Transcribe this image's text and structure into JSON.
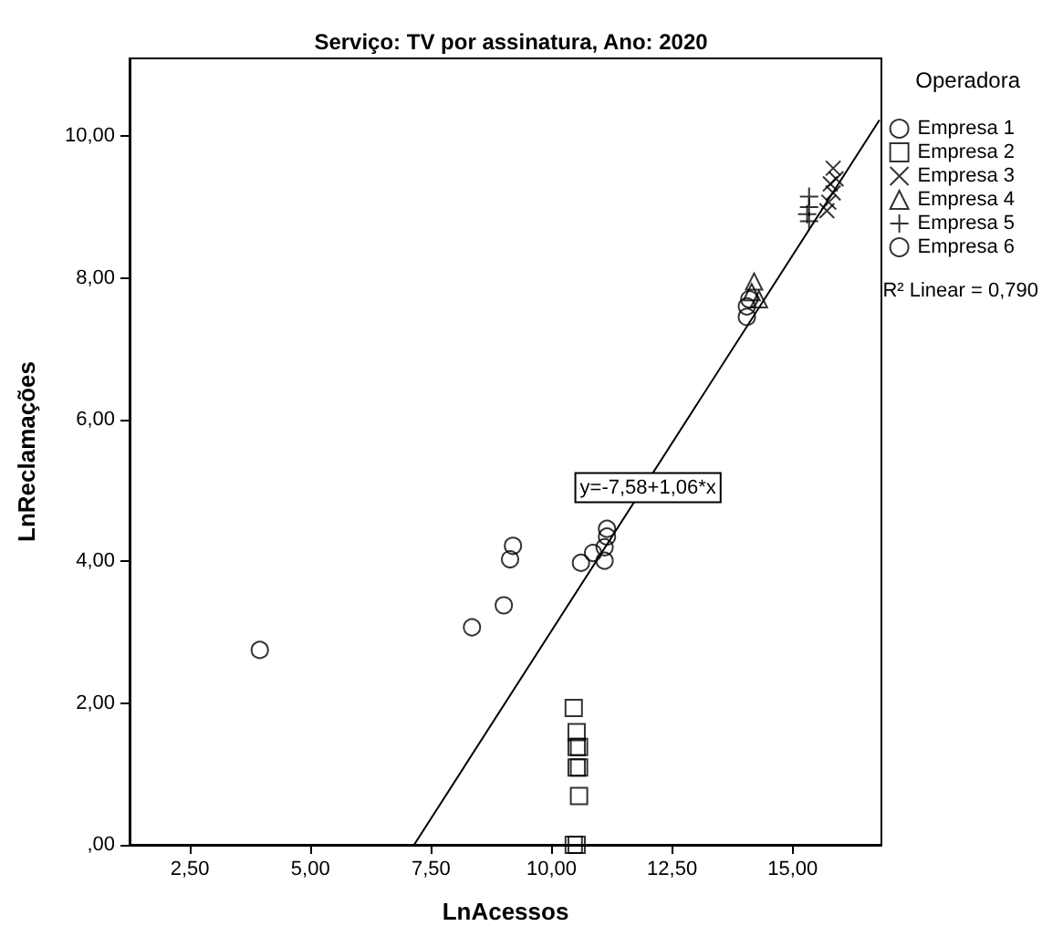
{
  "chart_data": {
    "type": "scatter",
    "title": "Serviço: TV por assinatura, Ano: 2020",
    "xlabel": "LnAcessos",
    "ylabel": "LnReclamações",
    "legend_title": "Operadora",
    "legend": "right",
    "xlim": [
      1.25,
      16.84
    ],
    "xticks": [
      {
        "value": 2.5,
        "label": "2,50"
      },
      {
        "value": 5,
        "label": "5,00"
      },
      {
        "value": 7.5,
        "label": "7,50"
      },
      {
        "value": 10,
        "label": "10,00"
      },
      {
        "value": 12.5,
        "label": "12,50"
      },
      {
        "value": 15,
        "label": "15,00"
      }
    ],
    "ylim": [
      0,
      11.1
    ],
    "yticks": [
      {
        "value": 0,
        "label": ",00"
      },
      {
        "value": 2,
        "label": "2,00"
      },
      {
        "value": 4,
        "label": "4,00"
      },
      {
        "value": 6,
        "label": "6,00"
      },
      {
        "value": 8,
        "label": "8,00"
      },
      {
        "value": 10,
        "label": "10,00"
      }
    ],
    "grid": false,
    "series": [
      {
        "name": "Empresa 1",
        "color": "#000000",
        "marker": "circle",
        "x": [
          3.95,
          8.35,
          9.01,
          9.14,
          9.2,
          10.61,
          10.86,
          11.1,
          11.1,
          11.15,
          11.15
        ],
        "values": [
          2.75,
          3.07,
          3.38,
          4.03,
          4.22,
          3.98,
          4.12,
          4.01,
          4.2,
          4.35,
          4.46
        ]
      },
      {
        "name": "Empresa 2",
        "color": "#000000",
        "marker": "square",
        "x": [
          10.46,
          10.52,
          10.57,
          10.52,
          10.52,
          10.57,
          10.57,
          10.46,
          10.52
        ],
        "values": [
          1.93,
          1.59,
          1.38,
          1.38,
          1.09,
          1.09,
          0.69,
          0,
          0
        ]
      },
      {
        "name": "Empresa 3",
        "color": "#000000",
        "marker": "x",
        "x": [
          15.84,
          15.9,
          15.78,
          15.84,
          15.75,
          15.71
        ],
        "values": [
          9.55,
          9.4,
          9.33,
          9.2,
          9.07,
          8.95
        ]
      },
      {
        "name": "Empresa 4",
        "color": "#000000",
        "marker": "triangle",
        "x": [
          14.2,
          14.15,
          14.3
        ],
        "values": [
          7.95,
          7.8,
          7.7
        ]
      },
      {
        "name": "Empresa 5",
        "color": "#000000",
        "marker": "cross",
        "x": [
          15.34,
          15.34,
          15.3,
          15.34
        ],
        "values": [
          9.15,
          9.0,
          8.9,
          8.8
        ]
      },
      {
        "name": "Empresa 6",
        "color": "#000000",
        "marker": "circle",
        "x": [
          14.05,
          14.05,
          14.1
        ],
        "values": [
          7.6,
          7.45,
          7.7
        ]
      },
      {
        "type": "line",
        "color": "#000000",
        "marker": "none",
        "line_style": "solid",
        "x": [
          7.15,
          16.8
        ],
        "values": [
          0.0,
          10.23
        ]
      }
    ],
    "annotations": [
      {
        "text": "y=-7,58+1,06*x",
        "x": 12.0,
        "y": 5.04
      },
      "R² Linear = 0,790"
    ]
  }
}
